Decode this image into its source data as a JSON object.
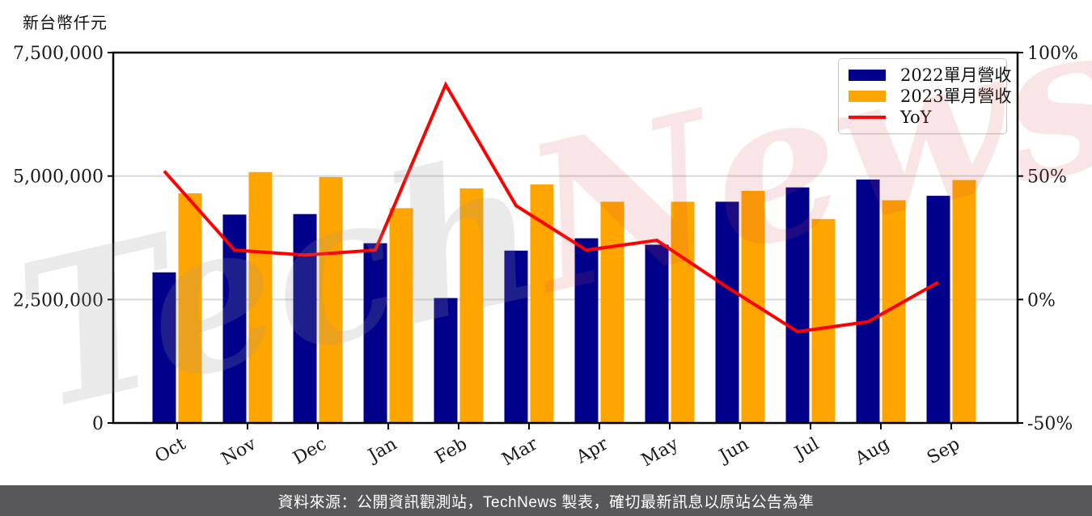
{
  "page": {
    "background": "#ffffff"
  },
  "watermark": {
    "tech": "Tech",
    "news": "News"
  },
  "footer": {
    "text": "資料來源：公開資訊觀測站，TechNews 製表，確切最新訊息以原站公告為準",
    "background": "#58585a",
    "text_color": "#ffffff"
  },
  "chart_data": {
    "type": "bar",
    "title": "",
    "categories": [
      "Oct",
      "Nov",
      "Dec",
      "Jan",
      "Feb",
      "Mar",
      "Apr",
      "May",
      "Jun",
      "Jul",
      "Aug",
      "Sep"
    ],
    "series": [
      {
        "name": "2022單月營收",
        "type": "bar",
        "axis": "left",
        "color": "#00008b",
        "values": [
          3050000,
          4220000,
          4230000,
          3640000,
          2530000,
          3490000,
          3740000,
          3610000,
          4480000,
          4770000,
          4930000,
          4600000
        ]
      },
      {
        "name": "2023單月營收",
        "type": "bar",
        "axis": "left",
        "color": "#ffa500",
        "values": [
          4650000,
          5080000,
          4980000,
          4350000,
          4750000,
          4830000,
          4480000,
          4480000,
          4700000,
          4130000,
          4510000,
          4920000
        ]
      },
      {
        "name": "YoY",
        "type": "line",
        "axis": "right",
        "color": "#ff0000",
        "unit": "%",
        "values": [
          52,
          20,
          18,
          20,
          87,
          38,
          20,
          24,
          5,
          -13,
          -9,
          7
        ]
      }
    ],
    "left_axis": {
      "label": "新台幣仟元",
      "min": 0,
      "max": 7500000,
      "ticks": [
        {
          "label": "0",
          "value": 0
        },
        {
          "label": "2,500,000",
          "value": 2500000
        },
        {
          "label": "5,000,000",
          "value": 5000000
        },
        {
          "label": "7,500,000",
          "value": 7500000
        }
      ]
    },
    "right_axis": {
      "min": -50,
      "max": 100,
      "ticks": [
        {
          "label": "-50%",
          "value": -50
        },
        {
          "label": "0%",
          "value": 0
        },
        {
          "label": "50%",
          "value": 50
        },
        {
          "label": "100%",
          "value": 100
        }
      ]
    },
    "grid": true,
    "legend_position": "top-right",
    "gridline_color": "#d9d9d9",
    "axis_color": "#000000",
    "tick_label_color": "#1a1a1a"
  }
}
